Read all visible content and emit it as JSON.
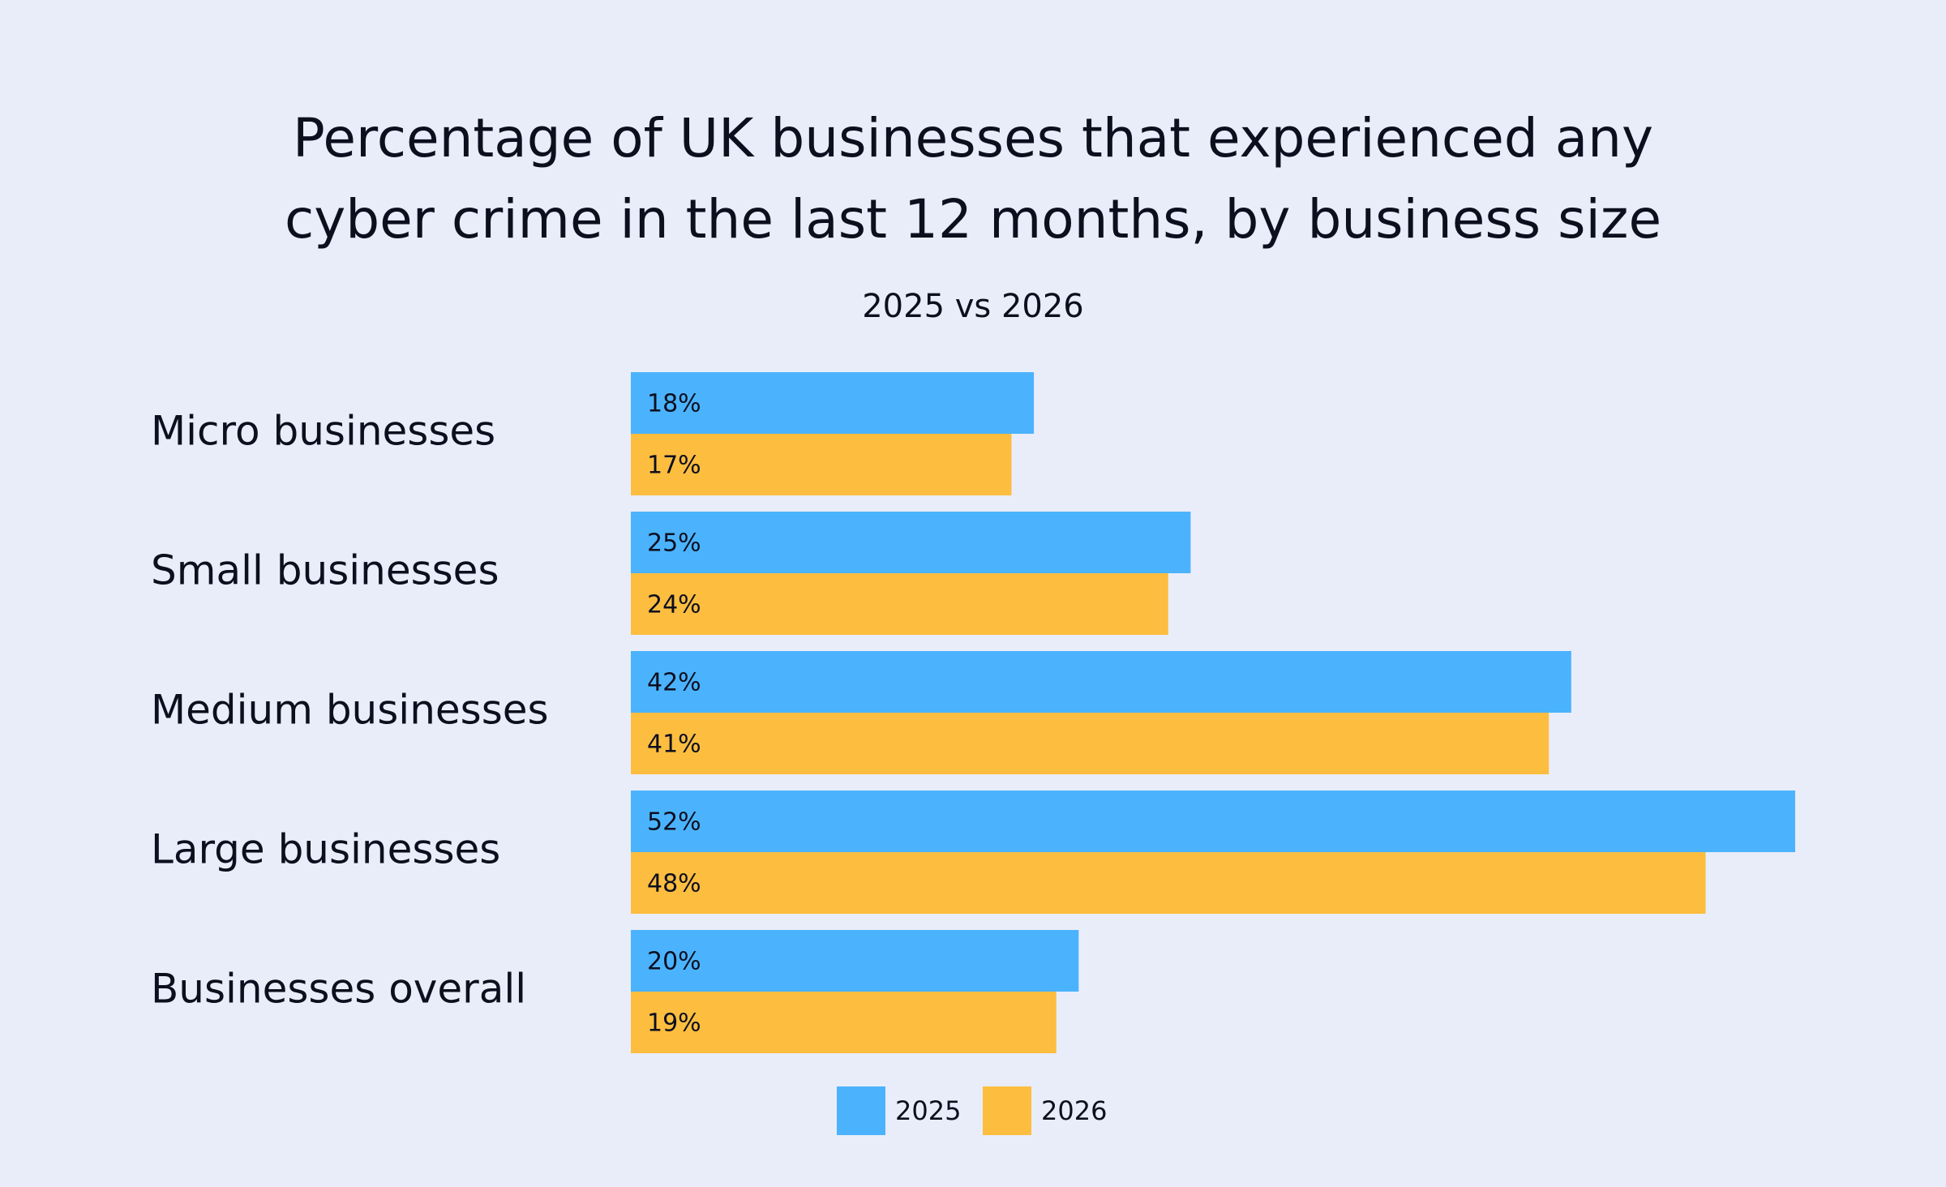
{
  "chart_data": {
    "type": "bar",
    "orientation": "horizontal",
    "title": [
      "Percentage of UK businesses that experienced any",
      "cyber crime in the last 12 months, by business size"
    ],
    "subtitle": "2025 vs 2026",
    "categories": [
      "Micro businesses",
      "Small businesses",
      "Medium businesses",
      "Large businesses",
      "Businesses overall"
    ],
    "series": [
      {
        "name": "2025",
        "color": "#4bb3fd",
        "values": [
          18,
          25,
          42,
          52,
          20
        ],
        "value_labels": [
          "18%",
          "25%",
          "42%",
          "52%",
          "20%"
        ]
      },
      {
        "name": "2026",
        "color": "#fdbd3f",
        "values": [
          17,
          24,
          41,
          48,
          19
        ],
        "value_labels": [
          "17%",
          "24%",
          "41%",
          "48%",
          "19%"
        ]
      }
    ],
    "legend": "bottom"
  }
}
